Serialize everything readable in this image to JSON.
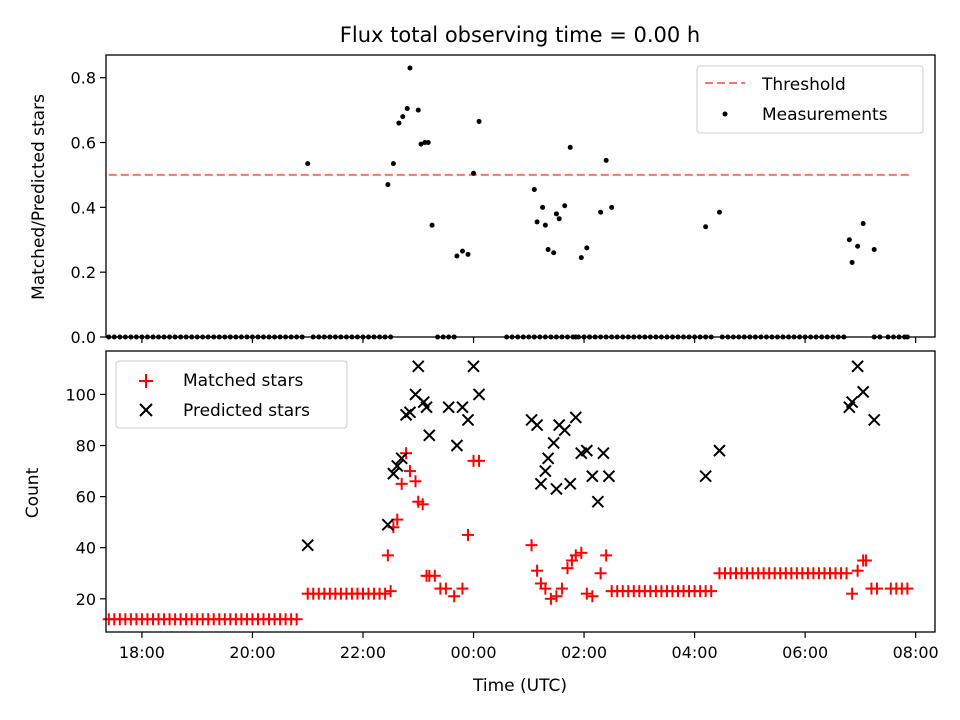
{
  "chart_data": [
    {
      "type": "scatter",
      "title": "Flux total observing time = 0.00 h",
      "xlabel": "",
      "ylabel": "Matched/Predicted stars",
      "ylim": [
        0.0,
        0.87
      ],
      "yticks": [
        0.0,
        0.2,
        0.4,
        0.6,
        0.8
      ],
      "ytick_labels": [
        "0.0",
        "0.2",
        "0.4",
        "0.6",
        "0.8"
      ],
      "xlim_hours": [
        -6.65,
        8.35
      ],
      "xticks_hours": [
        -6,
        -4,
        -2,
        0,
        2,
        4,
        6,
        8
      ],
      "grid": false,
      "legend": "top-right",
      "series": [
        {
          "name": "Threshold",
          "kind": "line",
          "style": "dashed",
          "color": "#ff7070",
          "x": [
            -6.6,
            7.9
          ],
          "y": [
            0.5,
            0.5
          ]
        },
        {
          "name": "Measurements",
          "kind": "scatter",
          "color": "#000000",
          "x": [
            -6.6,
            -6.5,
            -6.4,
            -6.3,
            -6.2,
            -6.1,
            -6.0,
            -5.9,
            -5.8,
            -5.7,
            -5.6,
            -5.5,
            -5.4,
            -5.3,
            -5.2,
            -5.1,
            -5.0,
            -4.9,
            -4.8,
            -4.7,
            -4.6,
            -4.5,
            -4.4,
            -4.3,
            -4.2,
            -4.1,
            -4.0,
            -3.9,
            -3.8,
            -3.7,
            -3.6,
            -3.5,
            -3.4,
            -3.3,
            -3.2,
            -3.1,
            -2.9,
            -2.8,
            -2.7,
            -2.6,
            -2.5,
            -2.4,
            -2.3,
            -2.2,
            -2.1,
            -2.0,
            -1.9,
            -1.8,
            -1.7,
            -1.6,
            -1.5,
            -0.55,
            -0.45,
            -0.35,
            0.6,
            0.7,
            0.8,
            0.9,
            1.0,
            1.1,
            1.2,
            1.3,
            1.4,
            1.5,
            1.6,
            1.7,
            1.8,
            1.9,
            2.0,
            2.1,
            2.2,
            2.3,
            2.4,
            2.5,
            2.6,
            2.7,
            2.8,
            2.9,
            3.0,
            3.1,
            3.2,
            3.3,
            3.4,
            3.5,
            3.6,
            3.7,
            3.8,
            3.9,
            4.0,
            4.1,
            4.2,
            4.3,
            4.5,
            4.6,
            4.7,
            4.8,
            4.9,
            5.0,
            5.1,
            5.2,
            5.3,
            5.4,
            5.5,
            5.6,
            5.7,
            5.8,
            5.9,
            6.0,
            6.1,
            6.2,
            6.3,
            6.4,
            6.5,
            6.6,
            6.7,
            7.25,
            7.35,
            7.5,
            7.6,
            7.7,
            7.8,
            7.85,
            -3.0,
            -1.55,
            -1.45,
            -1.35,
            -1.28,
            -1.2,
            -1.15,
            -1.0,
            -0.95,
            -0.88,
            -0.82,
            -0.75,
            -0.65,
            -0.3,
            -0.2,
            -0.1,
            0.0,
            0.1,
            1.1,
            1.15,
            1.25,
            1.3,
            1.35,
            1.45,
            1.5,
            1.55,
            1.65,
            1.75,
            1.85,
            1.95,
            2.05,
            2.1,
            2.3,
            2.4,
            2.5,
            4.2,
            4.45,
            6.8,
            6.85,
            6.95,
            7.05,
            7.25
          ],
          "y": [
            0,
            0,
            0,
            0,
            0,
            0,
            0,
            0,
            0,
            0,
            0,
            0,
            0,
            0,
            0,
            0,
            0,
            0,
            0,
            0,
            0,
            0,
            0,
            0,
            0,
            0,
            0,
            0,
            0,
            0,
            0,
            0,
            0,
            0,
            0,
            0,
            0,
            0,
            0,
            0,
            0,
            0,
            0,
            0,
            0,
            0,
            0,
            0,
            0,
            0,
            0,
            0,
            0,
            0,
            0,
            0,
            0,
            0,
            0,
            0,
            0,
            0,
            0,
            0,
            0,
            0,
            0,
            0,
            0,
            0,
            0,
            0,
            0,
            0,
            0,
            0,
            0,
            0,
            0,
            0,
            0,
            0,
            0,
            0,
            0,
            0,
            0,
            0,
            0,
            0,
            0,
            0,
            0,
            0,
            0,
            0,
            0,
            0,
            0,
            0,
            0,
            0,
            0,
            0,
            0,
            0,
            0,
            0,
            0,
            0,
            0,
            0,
            0,
            0,
            0,
            0,
            0,
            0,
            0,
            0,
            0,
            0,
            0.535,
            0.47,
            0.535,
            0.66,
            0.68,
            0.705,
            0.83,
            0.7,
            0.595,
            0.6,
            0.6,
            0.345,
            0.0,
            0.25,
            0.265,
            0.255,
            0.505,
            0.665,
            0.455,
            0.355,
            0.4,
            0.345,
            0.27,
            0.26,
            0.38,
            0.365,
            0.405,
            0.585,
            0.0,
            0.245,
            0.275,
            0.0,
            0.385,
            0.545,
            0.4,
            0.34,
            0.385,
            0.3,
            0.23,
            0.28,
            0.35,
            0.27
          ]
        }
      ]
    },
    {
      "type": "scatter",
      "title": "",
      "xlabel": "Time (UTC)",
      "ylabel": "Count",
      "ylim": [
        7,
        117
      ],
      "yticks": [
        20,
        40,
        60,
        80,
        100
      ],
      "ytick_labels": [
        "20",
        "40",
        "60",
        "80",
        "100"
      ],
      "xlim_hours": [
        -6.65,
        8.35
      ],
      "xticks_hours": [
        -6,
        -4,
        -2,
        0,
        2,
        4,
        6,
        8
      ],
      "xtick_labels": [
        "18:00",
        "20:00",
        "22:00",
        "00:00",
        "02:00",
        "04:00",
        "06:00",
        "08:00"
      ],
      "grid": false,
      "legend": "top-left",
      "series": [
        {
          "name": "Matched stars",
          "marker": "plus",
          "color": "#ff0000",
          "x": [
            -6.6,
            -6.5,
            -6.4,
            -6.3,
            -6.2,
            -6.1,
            -6.0,
            -5.9,
            -5.8,
            -5.7,
            -5.6,
            -5.5,
            -5.4,
            -5.3,
            -5.2,
            -5.1,
            -5.0,
            -4.9,
            -4.8,
            -4.7,
            -4.6,
            -4.5,
            -4.4,
            -4.3,
            -4.2,
            -4.1,
            -4.0,
            -3.9,
            -3.8,
            -3.7,
            -3.6,
            -3.5,
            -3.4,
            -3.3,
            -3.2,
            -3.0,
            -2.9,
            -2.8,
            -2.7,
            -2.6,
            -2.5,
            -2.4,
            -2.3,
            -2.2,
            -2.1,
            -2.0,
            -1.9,
            -1.8,
            -1.7,
            -1.6,
            -1.5,
            -1.55,
            -1.45,
            -1.38,
            -1.3,
            -1.22,
            -1.15,
            -1.05,
            -1.0,
            -0.92,
            -0.85,
            -0.8,
            -0.7,
            -0.6,
            -0.5,
            -0.35,
            -0.2,
            -0.1,
            0.0,
            0.1,
            1.05,
            1.15,
            1.22,
            1.3,
            1.4,
            1.5,
            1.6,
            1.7,
            1.78,
            1.85,
            1.95,
            2.05,
            2.15,
            2.3,
            2.4,
            2.5,
            2.6,
            2.7,
            2.8,
            2.9,
            3.0,
            3.1,
            3.2,
            3.3,
            3.4,
            3.5,
            3.6,
            3.7,
            3.8,
            3.9,
            4.0,
            4.1,
            4.2,
            4.3,
            4.45,
            4.55,
            4.65,
            4.75,
            4.85,
            4.95,
            5.05,
            5.15,
            5.25,
            5.35,
            5.45,
            5.55,
            5.65,
            5.75,
            5.85,
            5.95,
            6.05,
            6.15,
            6.25,
            6.35,
            6.45,
            6.55,
            6.65,
            6.75,
            6.85,
            6.95,
            7.05,
            7.1,
            7.2,
            7.3,
            7.55,
            7.65,
            7.75,
            7.85
          ],
          "y": [
            12,
            12,
            12,
            12,
            12,
            12,
            12,
            12,
            12,
            12,
            12,
            12,
            12,
            12,
            12,
            12,
            12,
            12,
            12,
            12,
            12,
            12,
            12,
            12,
            12,
            12,
            12,
            12,
            12,
            12,
            12,
            12,
            12,
            12,
            12,
            22,
            22,
            22,
            22,
            22,
            22,
            22,
            22,
            22,
            22,
            22,
            22,
            22,
            22,
            22,
            23,
            37,
            48,
            51,
            65,
            77,
            70,
            66,
            58,
            57,
            29,
            29,
            29,
            24,
            24,
            21,
            24,
            45,
            74,
            74,
            41,
            31,
            26,
            24,
            20,
            21,
            24,
            32,
            35,
            37,
            38,
            22,
            21,
            30,
            37,
            23,
            23,
            23,
            23,
            23,
            23,
            23,
            23,
            23,
            23,
            23,
            23,
            23,
            23,
            23,
            23,
            23,
            23,
            23,
            30,
            30,
            30,
            30,
            30,
            30,
            30,
            30,
            30,
            30,
            30,
            30,
            30,
            30,
            30,
            30,
            30,
            30,
            30,
            30,
            30,
            30,
            30,
            30,
            22,
            31,
            35,
            35,
            24,
            24,
            24,
            24,
            24,
            24
          ]
        },
        {
          "name": "Predicted stars",
          "marker": "x",
          "color": "#000000",
          "x": [
            -3.0,
            -1.55,
            -1.45,
            -1.38,
            -1.3,
            -1.22,
            -1.15,
            -1.05,
            -1.0,
            -0.9,
            -0.85,
            -0.8,
            -0.45,
            -0.3,
            -0.2,
            -0.1,
            0.0,
            0.1,
            1.05,
            1.15,
            1.22,
            1.3,
            1.35,
            1.45,
            1.5,
            1.55,
            1.65,
            1.75,
            1.85,
            1.95,
            2.05,
            2.15,
            2.25,
            2.35,
            2.45,
            4.2,
            4.45,
            6.8,
            6.85,
            6.95,
            7.05,
            7.25
          ],
          "y": [
            41,
            49,
            69,
            72,
            75,
            92,
            93,
            100,
            111,
            97,
            95,
            84,
            95,
            80,
            95,
            90,
            111,
            100,
            90,
            88,
            65,
            70,
            75,
            81,
            63,
            88,
            86,
            65,
            91,
            77,
            78,
            68,
            58,
            77,
            68,
            68,
            78,
            95,
            97,
            111,
            101,
            90
          ]
        }
      ]
    }
  ]
}
